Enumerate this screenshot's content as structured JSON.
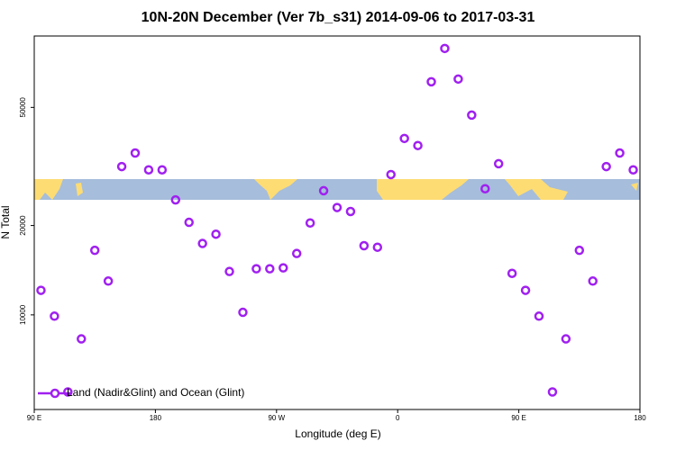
{
  "chart_data": {
    "type": "scatter",
    "title": "10N-20N December (Ver 7b_s31)   2014-09-06 to 2017-03-31",
    "x_label": "Longitude (deg E)",
    "y_label": "N Total",
    "log_y": true,
    "xlim": [
      90,
      540
    ],
    "ylim": [
      4800,
      87000
    ],
    "xticks": [
      {
        "value": 90,
        "label": "90 E"
      },
      {
        "value": 180,
        "label": "180"
      },
      {
        "value": 270,
        "label": "90 W"
      },
      {
        "value": 360,
        "label": "0"
      },
      {
        "value": 450,
        "label": "90 E"
      },
      {
        "value": 540,
        "label": "180"
      }
    ],
    "yticks": [
      10000,
      20000,
      50000
    ],
    "legend_position": "bottom-left",
    "series": [
      {
        "name": "Land (Nadir&Glint) and Ocean (Glint)",
        "color": "#a020f0",
        "x": [
          95,
          105,
          115,
          125,
          135,
          145,
          155,
          165,
          175,
          185,
          195,
          205,
          215,
          225,
          235,
          245,
          255,
          265,
          275,
          285,
          295,
          305,
          315,
          325,
          335,
          345,
          355,
          365,
          375,
          385,
          395,
          405,
          415,
          425,
          435,
          445,
          455,
          465,
          475,
          485,
          495,
          505,
          515,
          525,
          535
        ],
        "values": [
          12100,
          9900,
          5500,
          8300,
          16500,
          13000,
          31600,
          35100,
          30800,
          30800,
          24400,
          20500,
          17400,
          18700,
          14000,
          10200,
          14300,
          14300,
          14400,
          16100,
          20400,
          26200,
          23000,
          22300,
          17100,
          16900,
          29700,
          39300,
          37200,
          61000,
          79000,
          62300,
          47100,
          26600,
          32300,
          13800,
          12100,
          9900,
          5500,
          8300,
          16500,
          13000,
          31600,
          35100,
          30800
        ]
      }
    ]
  }
}
